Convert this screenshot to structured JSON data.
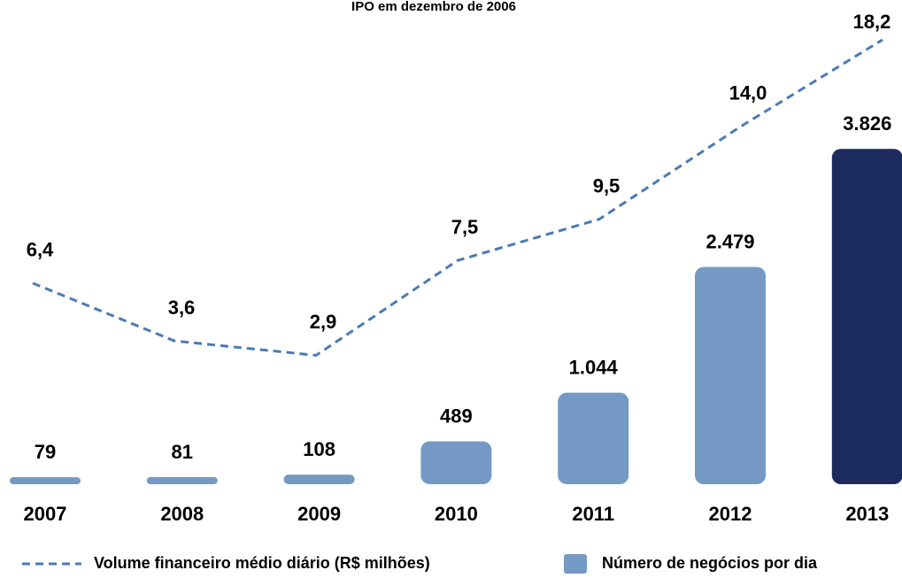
{
  "chart_data": {
    "type": "bar",
    "title": "IPO em dezembro de 2006",
    "categories": [
      "2007",
      "2008",
      "2009",
      "2010",
      "2011",
      "2012",
      "2013"
    ],
    "series": [
      {
        "name": "Número de negócios por dia",
        "type": "bar",
        "colors": [
          "#7399c4",
          "#7399c4",
          "#7399c4",
          "#7399c4",
          "#7399c4",
          "#7399c4",
          "#1b2b5e"
        ],
        "color": "#7399c4",
        "values": [
          79,
          81,
          108,
          489,
          1044,
          2479,
          3826
        ],
        "value_labels": [
          "79",
          "81",
          "108",
          "489",
          "1.044",
          "2.479",
          "3.826"
        ]
      },
      {
        "name": "Volume financeiro médio diário (R$ milhões)",
        "type": "line",
        "axis": "y2",
        "color": "#4a7bb5",
        "dashed": true,
        "values": [
          6.4,
          3.6,
          2.9,
          7.5,
          9.5,
          14.0,
          18.2
        ],
        "value_labels": [
          "6,4",
          "3,6",
          "2,9",
          "7,5",
          "9,5",
          "14,0",
          "18,2"
        ]
      }
    ],
    "ylim": [
      0,
      4000
    ],
    "y2lim": [
      0,
      20
    ],
    "legend": "bottom"
  }
}
